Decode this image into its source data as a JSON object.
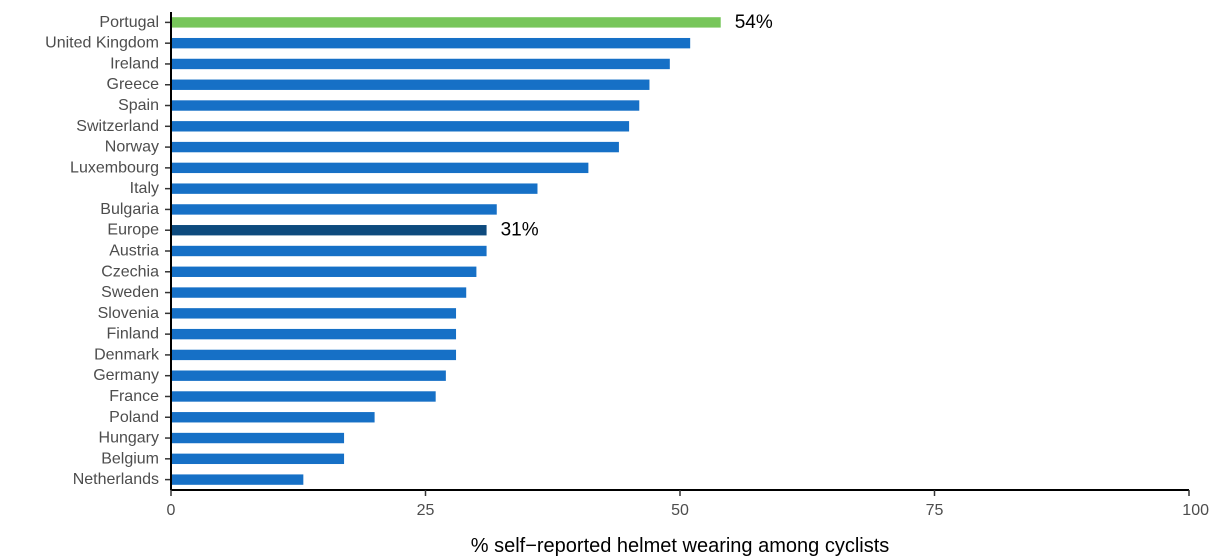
{
  "chart_data": {
    "type": "bar",
    "orientation": "horizontal",
    "title": "",
    "xlabel": "% self−reported helmet wearing among cyclists",
    "ylabel": "",
    "xlim": [
      0,
      100
    ],
    "xticks": [
      {
        "value": 0,
        "label": "0"
      },
      {
        "value": 25,
        "label": "25"
      },
      {
        "value": 50,
        "label": "50"
      },
      {
        "value": 75,
        "label": "75"
      },
      {
        "value": 100,
        "label": "100"
      }
    ],
    "grid": false,
    "legend": "none",
    "categories": [
      "Portugal",
      "United Kingdom",
      "Ireland",
      "Greece",
      "Spain",
      "Switzerland",
      "Norway",
      "Luxembourg",
      "Italy",
      "Bulgaria",
      "Europe",
      "Austria",
      "Czechia",
      "Sweden",
      "Slovenia",
      "Finland",
      "Denmark",
      "Germany",
      "France",
      "Poland",
      "Hungary",
      "Belgium",
      "Netherlands"
    ],
    "values": [
      54,
      51,
      49,
      47,
      46,
      45,
      44,
      41,
      36,
      32,
      31,
      31,
      30,
      29,
      28,
      28,
      28,
      27,
      26,
      20,
      17,
      17,
      13
    ],
    "highlights": [
      {
        "category": "Portugal",
        "label": "54%",
        "color": "#77c65a"
      },
      {
        "category": "Europe",
        "label": "31%",
        "color": "#0d4a7d"
      }
    ],
    "colors": {
      "default": "#1670c6"
    }
  }
}
